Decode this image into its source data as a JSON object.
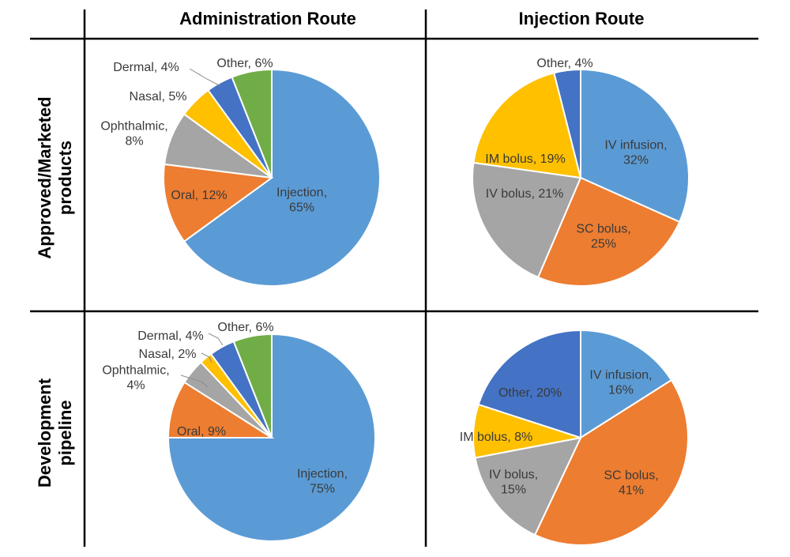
{
  "headers": {
    "columns": [
      "Administration Route",
      "Injection Route"
    ],
    "rows": [
      [
        "Approved/Marketed",
        "products"
      ],
      [
        "Development",
        "pipeline"
      ]
    ]
  },
  "colors": {
    "blue": "#5B9BD5",
    "orange": "#ED7D31",
    "gray": "#A5A5A5",
    "yellow": "#FFC000",
    "darkblue": "#4472C4",
    "green": "#70AD47"
  },
  "chart_data": [
    {
      "type": "pie",
      "title": "Administration Route",
      "row": "Approved/Marketed products",
      "slices": [
        {
          "name": "Injection",
          "value": 65,
          "color": "#5B9BD5",
          "label": [
            "Injection,",
            "65%"
          ]
        },
        {
          "name": "Oral",
          "value": 12,
          "color": "#ED7D31",
          "label": [
            "Oral, 12%"
          ]
        },
        {
          "name": "Ophthalmic",
          "value": 8,
          "color": "#A5A5A5",
          "label": [
            "Ophthalmic,",
            "8%"
          ]
        },
        {
          "name": "Nasal",
          "value": 5,
          "color": "#FFC000",
          "label": [
            "Nasal, 5%"
          ]
        },
        {
          "name": "Dermal",
          "value": 4,
          "color": "#4472C4",
          "label": [
            "Dermal, 4%"
          ]
        },
        {
          "name": "Other",
          "value": 6,
          "color": "#70AD47",
          "label": [
            "Other, 6%"
          ]
        }
      ]
    },
    {
      "type": "pie",
      "title": "Injection Route",
      "row": "Approved/Marketed products",
      "slices": [
        {
          "name": "IV infusion",
          "value": 32,
          "color": "#5B9BD5",
          "label": [
            "IV infusion,",
            "32%"
          ]
        },
        {
          "name": "SC bolus",
          "value": 25,
          "color": "#ED7D31",
          "label": [
            "SC bolus,",
            "25%"
          ]
        },
        {
          "name": "IV bolus",
          "value": 21,
          "color": "#A5A5A5",
          "label": [
            "IV bolus, 21%"
          ]
        },
        {
          "name": "IM bolus",
          "value": 19,
          "color": "#FFC000",
          "label": [
            "IM bolus, 19%"
          ]
        },
        {
          "name": "Other",
          "value": 4,
          "color": "#4472C4",
          "label": [
            "Other, 4%"
          ]
        }
      ]
    },
    {
      "type": "pie",
      "title": "Administration Route",
      "row": "Development pipeline",
      "slices": [
        {
          "name": "Injection",
          "value": 75,
          "color": "#5B9BD5",
          "label": [
            "Injection,",
            "75%"
          ]
        },
        {
          "name": "Oral",
          "value": 9,
          "color": "#ED7D31",
          "label": [
            "Oral, 9%"
          ]
        },
        {
          "name": "Ophthalmic",
          "value": 4,
          "color": "#A5A5A5",
          "label": [
            "Ophthalmic,",
            "4%"
          ]
        },
        {
          "name": "Nasal",
          "value": 2,
          "color": "#FFC000",
          "label": [
            "Nasal, 2%"
          ]
        },
        {
          "name": "Dermal",
          "value": 4,
          "color": "#4472C4",
          "label": [
            "Dermal, 4%"
          ]
        },
        {
          "name": "Other",
          "value": 6,
          "color": "#70AD47",
          "label": [
            "Other, 6%"
          ]
        }
      ]
    },
    {
      "type": "pie",
      "title": "Injection Route",
      "row": "Development pipeline",
      "slices": [
        {
          "name": "IV infusion",
          "value": 16,
          "color": "#5B9BD5",
          "label": [
            "IV infusion,",
            "16%"
          ]
        },
        {
          "name": "SC bolus",
          "value": 41,
          "color": "#ED7D31",
          "label": [
            "SC bolus,",
            "41%"
          ]
        },
        {
          "name": "IV bolus",
          "value": 15,
          "color": "#A5A5A5",
          "label": [
            "IV bolus,",
            "15%"
          ]
        },
        {
          "name": "IM bolus",
          "value": 8,
          "color": "#FFC000",
          "label": [
            "IM bolus, 8%"
          ]
        },
        {
          "name": "Other",
          "value": 20,
          "color": "#4472C4",
          "label": [
            "Other, 20%"
          ]
        }
      ]
    }
  ]
}
